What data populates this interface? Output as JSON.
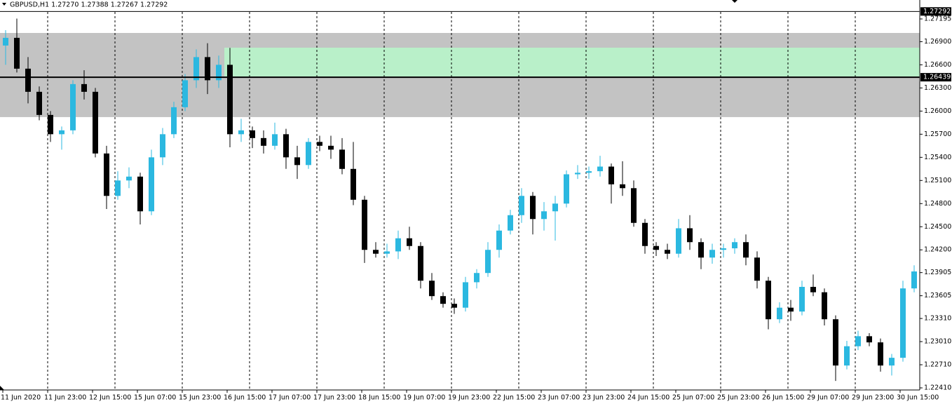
{
  "chart_data": {
    "type": "candlestick",
    "header": "GBPUSD,H1  1.27270 1.27388 1.27267 1.27292",
    "categories": [
      "11 Jun 2020",
      null,
      null,
      null,
      "11 Jun 23:00",
      null,
      null,
      null,
      "12 Jun 15:00",
      null,
      null,
      null,
      "15 Jun 07:00",
      null,
      null,
      null,
      "15 Jun 23:00",
      null,
      null,
      null,
      "16 Jun 15:00",
      null,
      null,
      null,
      "17 Jun 07:00",
      null,
      null,
      null,
      "17 Jun 23:00",
      null,
      null,
      null,
      "18 Jun 15:00",
      null,
      null,
      null,
      "19 Jun 07:00",
      null,
      null,
      null,
      "19 Jun 23:00",
      null,
      null,
      null,
      "22 Jun 15:00",
      null,
      null,
      null,
      "23 Jun 07:00",
      null,
      null,
      null,
      "23 Jun 23:00",
      null,
      null,
      null,
      "24 Jun 15:00",
      null,
      null,
      null,
      "25 Jun 07:00",
      null,
      null,
      null,
      "25 Jun 23:00",
      null,
      null,
      null,
      "26 Jun 15:00",
      null,
      null,
      null,
      "29 Jun 07:00",
      null,
      null,
      null,
      "29 Jun 23:00",
      null,
      null,
      null,
      "30 Jun 15:00",
      null
    ],
    "ohlc": [
      [
        1.2685,
        1.2705,
        1.266,
        1.2695
      ],
      [
        1.2695,
        1.272,
        1.265,
        1.2655
      ],
      [
        1.2655,
        1.267,
        1.261,
        1.2625
      ],
      [
        1.2625,
        1.2632,
        1.2588,
        1.2595
      ],
      [
        1.2595,
        1.26,
        1.256,
        1.257
      ],
      [
        1.257,
        1.258,
        1.255,
        1.2575
      ],
      [
        1.2575,
        1.264,
        1.257,
        1.2635
      ],
      [
        1.2635,
        1.2653,
        1.2615,
        1.2625
      ],
      [
        1.2625,
        1.263,
        1.254,
        1.2545
      ],
      [
        1.2545,
        1.2555,
        1.2473,
        1.249
      ],
      [
        1.249,
        1.2522,
        1.2485,
        1.251
      ],
      [
        1.251,
        1.2527,
        1.25,
        1.2515
      ],
      [
        1.2515,
        1.252,
        1.2453,
        1.247
      ],
      [
        1.247,
        1.255,
        1.2465,
        1.254
      ],
      [
        1.254,
        1.2578,
        1.253,
        1.257
      ],
      [
        1.257,
        1.2612,
        1.2565,
        1.2605
      ],
      [
        1.2605,
        1.2648,
        1.26,
        1.264
      ],
      [
        1.264,
        1.268,
        1.263,
        1.267
      ],
      [
        1.267,
        1.2688,
        1.2622,
        1.264
      ],
      [
        1.264,
        1.2672,
        1.263,
        1.266
      ],
      [
        1.266,
        1.2682,
        1.2553,
        1.257
      ],
      [
        1.257,
        1.259,
        1.256,
        1.2575
      ],
      [
        1.2575,
        1.258,
        1.2552,
        1.2565
      ],
      [
        1.2565,
        1.2575,
        1.2545,
        1.2555
      ],
      [
        1.2555,
        1.2585,
        1.255,
        1.257
      ],
      [
        1.257,
        1.2577,
        1.2525,
        1.254
      ],
      [
        1.254,
        1.2555,
        1.2512,
        1.253
      ],
      [
        1.253,
        1.2565,
        1.2525,
        1.256
      ],
      [
        1.256,
        1.2568,
        1.2548,
        1.2555
      ],
      [
        1.2555,
        1.2568,
        1.2538,
        1.255
      ],
      [
        1.255,
        1.2565,
        1.2518,
        1.2525
      ],
      [
        1.2525,
        1.256,
        1.2478,
        1.2485
      ],
      [
        1.2485,
        1.249,
        1.2403,
        1.242
      ],
      [
        1.242,
        1.243,
        1.241,
        1.2415
      ],
      [
        1.2415,
        1.2428,
        1.241,
        1.2418
      ],
      [
        1.2418,
        1.2445,
        1.2408,
        1.2435
      ],
      [
        1.2435,
        1.245,
        1.242,
        1.2425
      ],
      [
        1.2425,
        1.243,
        1.237,
        1.238
      ],
      [
        1.238,
        1.239,
        1.2355,
        1.236
      ],
      [
        1.236,
        1.2365,
        1.2345,
        1.235
      ],
      [
        1.235,
        1.2357,
        1.2337,
        1.2345
      ],
      [
        1.2345,
        1.2385,
        1.234,
        1.2378
      ],
      [
        1.2378,
        1.2395,
        1.237,
        1.239
      ],
      [
        1.239,
        1.243,
        1.2385,
        1.242
      ],
      [
        1.242,
        1.2453,
        1.241,
        1.2445
      ],
      [
        1.2445,
        1.2472,
        1.244,
        1.2465
      ],
      [
        1.2465,
        1.25,
        1.2455,
        1.249
      ],
      [
        1.249,
        1.2495,
        1.244,
        1.246
      ],
      [
        1.246,
        1.2482,
        1.2445,
        1.247
      ],
      [
        1.247,
        1.249,
        1.2432,
        1.248
      ],
      [
        1.248,
        1.2523,
        1.2475,
        1.2518
      ],
      [
        1.2518,
        1.253,
        1.2512,
        1.252
      ],
      [
        1.252,
        1.2528,
        1.2512,
        1.2522
      ],
      [
        1.2522,
        1.2542,
        1.2515,
        1.2528
      ],
      [
        1.2528,
        1.2532,
        1.248,
        1.2505
      ],
      [
        1.2505,
        1.2535,
        1.249,
        1.25
      ],
      [
        1.25,
        1.251,
        1.245,
        1.2455
      ],
      [
        1.2455,
        1.246,
        1.2415,
        1.2425
      ],
      [
        1.2425,
        1.243,
        1.2412,
        1.242
      ],
      [
        1.242,
        1.2428,
        1.2408,
        1.2415
      ],
      [
        1.2415,
        1.246,
        1.241,
        1.2448
      ],
      [
        1.2448,
        1.2465,
        1.242,
        1.243
      ],
      [
        1.243,
        1.2435,
        1.2395,
        1.241
      ],
      [
        1.241,
        1.2428,
        1.2402,
        1.242
      ],
      [
        1.242,
        1.2428,
        1.241,
        1.2422
      ],
      [
        1.2422,
        1.2435,
        1.2415,
        1.243
      ],
      [
        1.243,
        1.244,
        1.24,
        1.241
      ],
      [
        1.241,
        1.2418,
        1.237,
        1.238
      ],
      [
        1.238,
        1.2385,
        1.2317,
        1.233
      ],
      [
        1.233,
        1.2352,
        1.2325,
        1.2345
      ],
      [
        1.2345,
        1.2355,
        1.2328,
        1.234
      ],
      [
        1.234,
        1.238,
        1.2335,
        1.2372
      ],
      [
        1.2372,
        1.2388,
        1.236,
        1.2365
      ],
      [
        1.2365,
        1.237,
        1.2322,
        1.233
      ],
      [
        1.233,
        1.2335,
        1.225,
        1.227
      ],
      [
        1.227,
        1.2302,
        1.2265,
        1.2295
      ],
      [
        1.2295,
        1.2315,
        1.229,
        1.2308
      ],
      [
        1.2308,
        1.2312,
        1.2295,
        1.23
      ],
      [
        1.23,
        1.2305,
        1.2262,
        1.227
      ],
      [
        1.227,
        1.2285,
        1.2257,
        1.228
      ],
      [
        1.228,
        1.238,
        1.2275,
        1.237
      ],
      [
        1.237,
        1.24,
        1.2365,
        1.2392
      ]
    ],
    "up_color": "#2bb8e0",
    "down_color": "#000000",
    "ylim": [
      1.2241,
      1.27286
    ],
    "yticks": [
      1.27195,
      {
        "value": 1.269,
        "label": "1.26900"
      },
      {
        "value": 1.266,
        "label": "1.26600"
      },
      {
        "value": 1.263,
        "label": "1.26300"
      },
      {
        "value": 1.26,
        "label": "1.26000"
      },
      {
        "value": 1.257,
        "label": "1.25700"
      },
      {
        "value": 1.254,
        "label": "1.25400"
      },
      {
        "value": 1.251,
        "label": "1.25100"
      },
      {
        "value": 1.248,
        "label": "1.24800"
      },
      {
        "value": 1.245,
        "label": "1.24500"
      },
      {
        "value": 1.242,
        "label": "1.24200"
      },
      1.23905,
      1.23605,
      {
        "value": 1.2331,
        "label": "1.23310"
      },
      {
        "value": 1.2301,
        "label": "1.23010"
      },
      {
        "value": 1.2271,
        "label": "1.22710"
      },
      {
        "value": 1.2241,
        "label": "1.22410"
      }
    ],
    "zones": [
      {
        "ylim": [
          1.25922,
          1.27013
        ],
        "color": "#c3c3c3"
      },
      {
        "ylim": [
          1.26449,
          1.26822
        ],
        "color": "#b9f0c9",
        "from": "16 Jun 15:00"
      }
    ],
    "price_lines": [
      {
        "value": 1.27292,
        "label": "1.27292"
      },
      {
        "value": 1.26439,
        "label": "1.26439"
      }
    ]
  }
}
